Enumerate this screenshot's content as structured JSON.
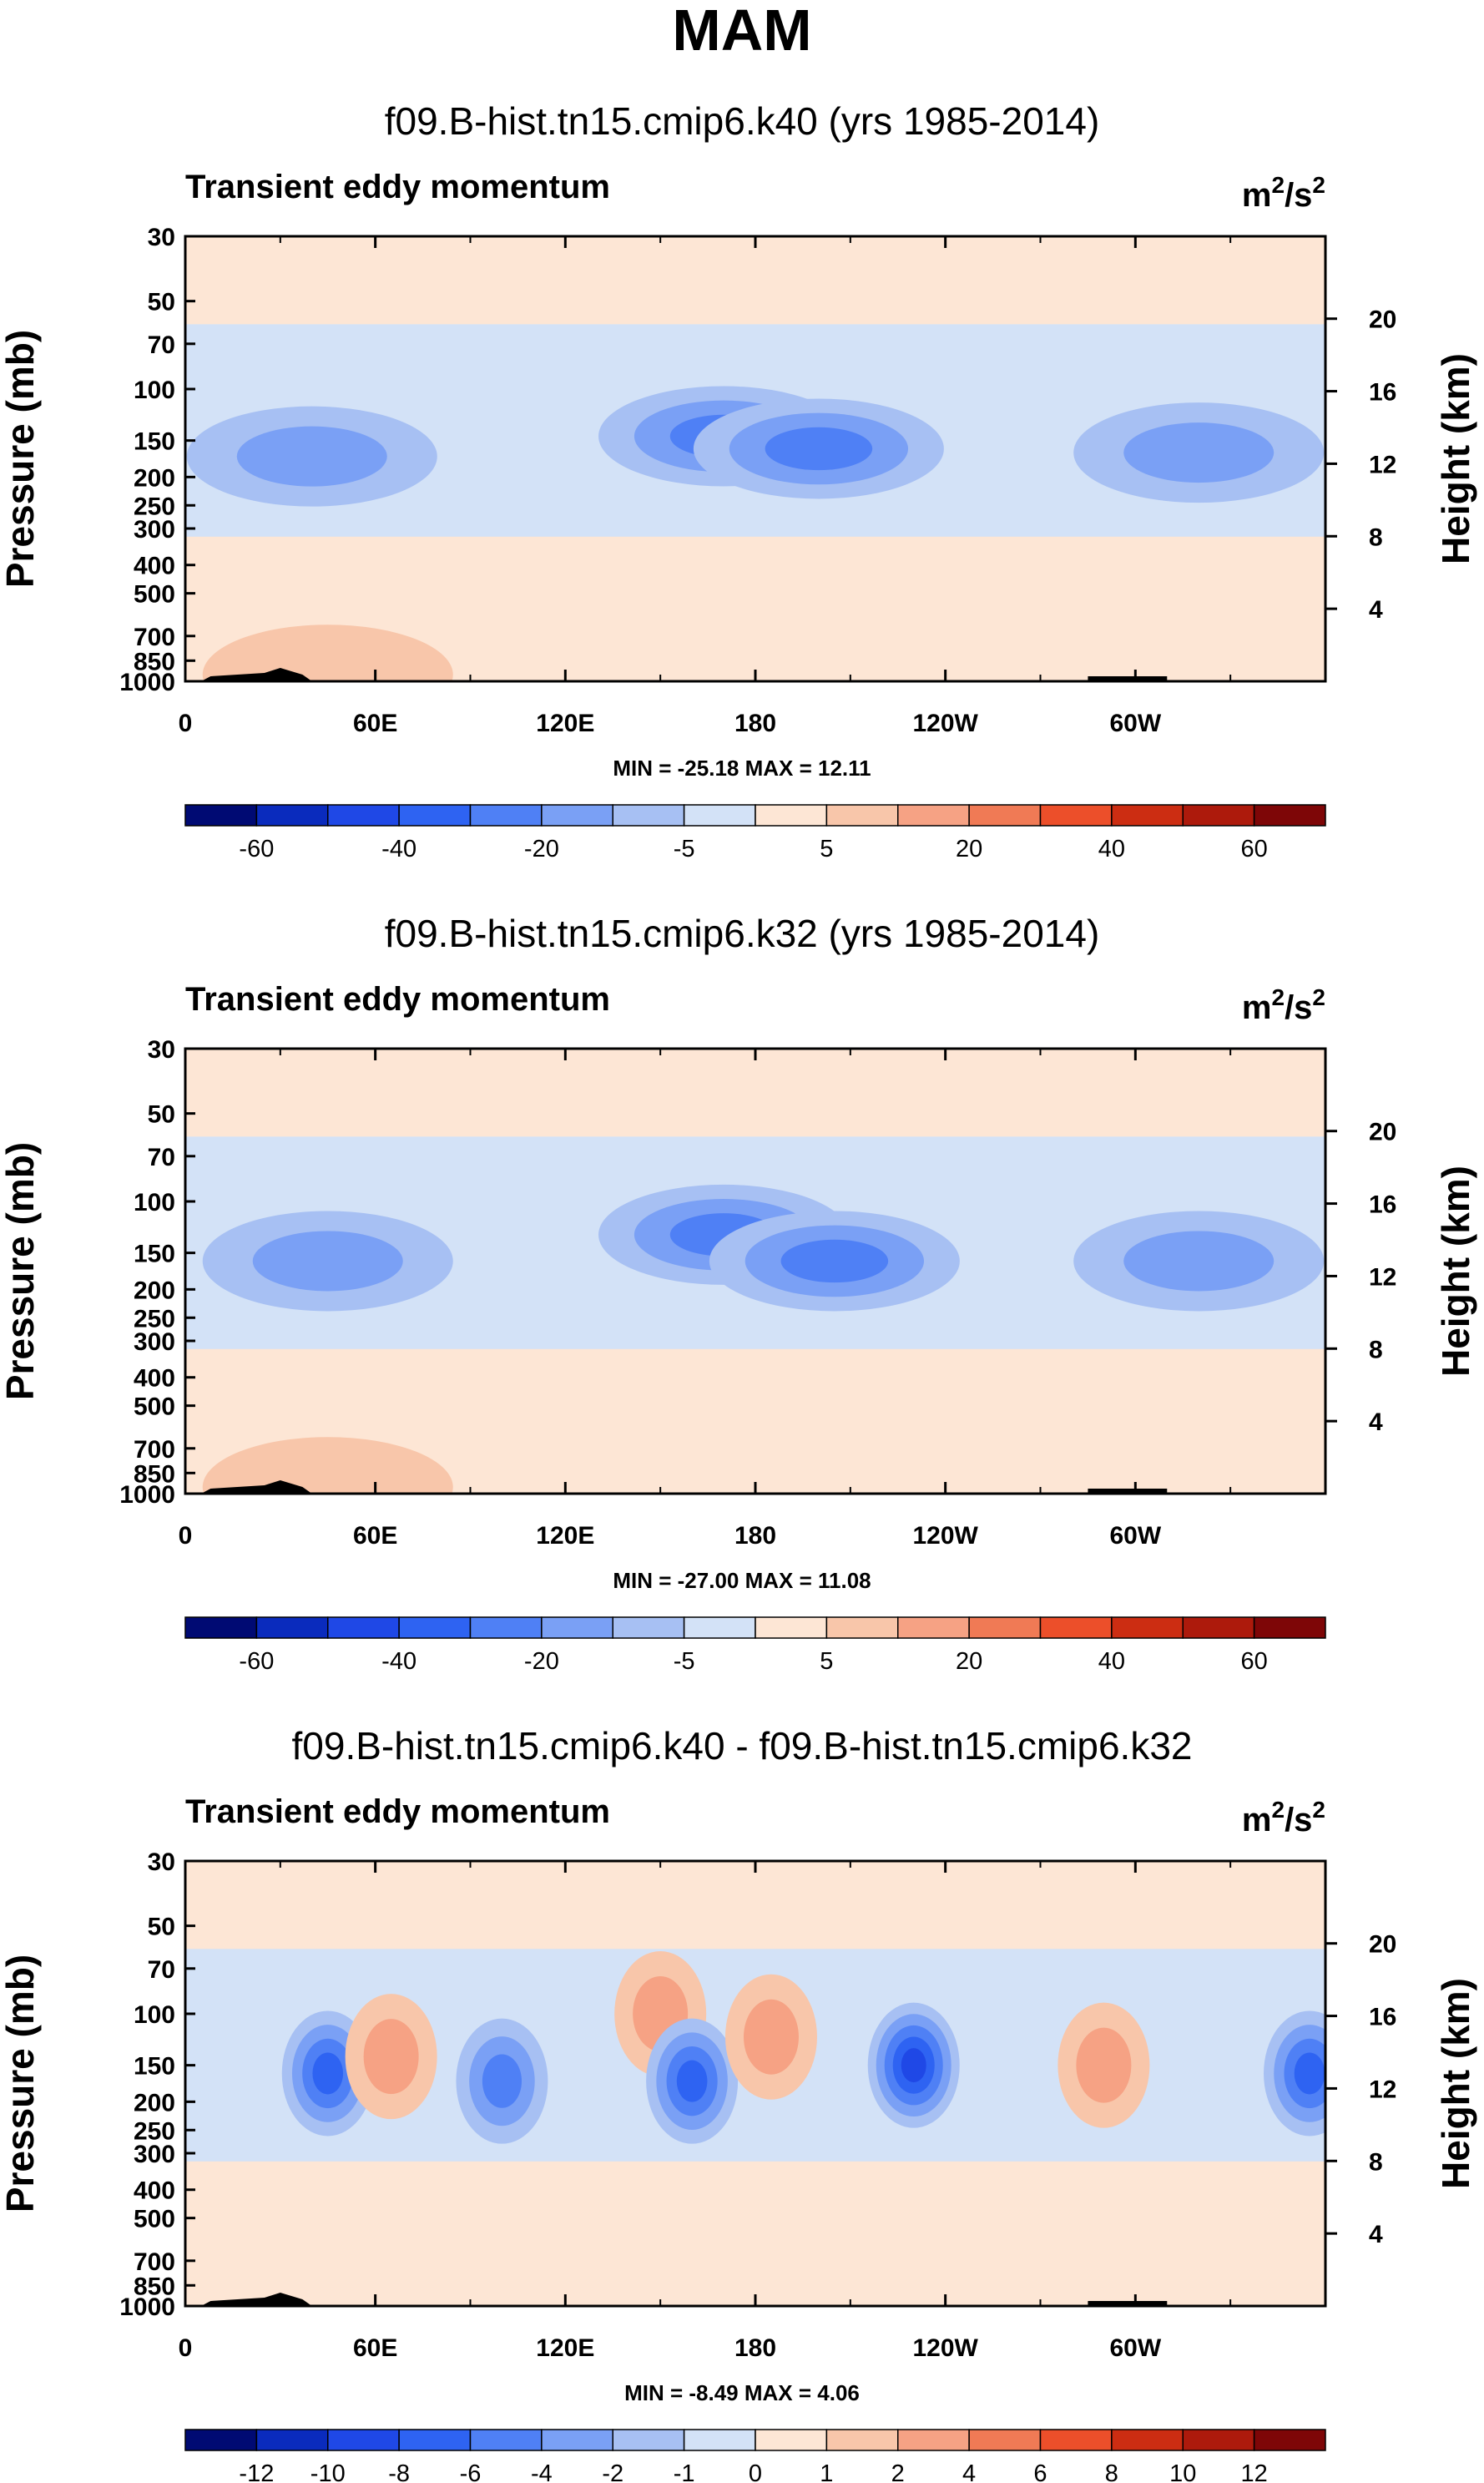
{
  "figure_title": "MAM",
  "colors": {
    "scale": [
      "#000a73",
      "#0a2bbd",
      "#1f48e6",
      "#2e63f2",
      "#4f80f5",
      "#7aa0f5",
      "#a7c0f3",
      "#d3e2f7",
      "#fde6d5",
      "#f8c6aa",
      "#f6a284",
      "#f07a55",
      "#ec4f2a",
      "#cc2d12",
      "#ad1a0c",
      "#7e0607"
    ],
    "land": "#000000"
  },
  "colorbar_labels": {
    "absolute": [
      "-60",
      "-40",
      "-20",
      "-5",
      "5",
      "20",
      "40",
      "60"
    ],
    "difference": [
      "-12",
      "-10",
      "-8",
      "-6",
      "-4",
      "-2",
      "-1",
      "0",
      "1",
      "2",
      "4",
      "6",
      "8",
      "10",
      "12"
    ]
  },
  "chart_data": [
    {
      "type": "heatmap",
      "title": "f09.B-hist.tn15.cmip6.k40 (yrs 1985-2014)",
      "subtitle": "Transient eddy momentum",
      "units_base": "m",
      "units_exp1": "2",
      "units_mid": "/s",
      "units_exp2": "2",
      "xlabel": "",
      "ylabel": "Pressure (mb)",
      "ylabel_right": "Height (km)",
      "x_ticks": [
        "0",
        "60E",
        "120E",
        "180",
        "120W",
        "60W"
      ],
      "y_ticks": [
        "30",
        "50",
        "70",
        "100",
        "150",
        "200",
        "250",
        "300",
        "400",
        "500",
        "700",
        "850",
        "1000"
      ],
      "y_ticks_right": [
        "20",
        "16",
        "12",
        "8",
        "4"
      ],
      "min_label": "MIN = -25.18",
      "max_label": "MAX =  12.11",
      "min": -25.18,
      "max": 12.11,
      "xlim_lon": [
        0,
        360
      ],
      "ylim_mb": [
        1000,
        30
      ],
      "contour_levels": [
        -70,
        -60,
        -50,
        -40,
        -30,
        -20,
        -10,
        -5,
        0,
        5,
        10,
        20,
        30,
        40,
        50,
        60,
        70
      ],
      "features": [
        {
          "lon": 40,
          "mb": 170,
          "value": -15
        },
        {
          "lon": 170,
          "mb": 145,
          "value": -20
        },
        {
          "lon": 200,
          "mb": 160,
          "value": -25
        },
        {
          "lon": 320,
          "mb": 165,
          "value": -14
        },
        {
          "lon": 45,
          "mb": 950,
          "value": 6
        }
      ]
    },
    {
      "type": "heatmap",
      "title": "f09.B-hist.tn15.cmip6.k32 (yrs 1985-2014)",
      "subtitle": "Transient eddy momentum",
      "units_base": "m",
      "units_exp1": "2",
      "units_mid": "/s",
      "units_exp2": "2",
      "xlabel": "",
      "ylabel": "Pressure (mb)",
      "ylabel_right": "Height (km)",
      "x_ticks": [
        "0",
        "60E",
        "120E",
        "180",
        "120W",
        "60W"
      ],
      "y_ticks": [
        "30",
        "50",
        "70",
        "100",
        "150",
        "200",
        "250",
        "300",
        "400",
        "500",
        "700",
        "850",
        "1000"
      ],
      "y_ticks_right": [
        "20",
        "16",
        "12",
        "8",
        "4"
      ],
      "min_label": "MIN = -27.00",
      "max_label": "MAX =  11.08",
      "min": -27.0,
      "max": 11.08,
      "xlim_lon": [
        0,
        360
      ],
      "ylim_mb": [
        1000,
        30
      ],
      "contour_levels": [
        -70,
        -60,
        -50,
        -40,
        -30,
        -20,
        -10,
        -5,
        0,
        5,
        10,
        20,
        30,
        40,
        50,
        60,
        70
      ],
      "features": [
        {
          "lon": 45,
          "mb": 160,
          "value": -14
        },
        {
          "lon": 170,
          "mb": 130,
          "value": -20
        },
        {
          "lon": 205,
          "mb": 160,
          "value": -27
        },
        {
          "lon": 320,
          "mb": 160,
          "value": -15
        },
        {
          "lon": 45,
          "mb": 950,
          "value": 6
        }
      ]
    },
    {
      "type": "heatmap",
      "title": "f09.B-hist.tn15.cmip6.k40 - f09.B-hist.tn15.cmip6.k32",
      "subtitle": "Transient eddy momentum",
      "units_base": "m",
      "units_exp1": "2",
      "units_mid": "/s",
      "units_exp2": "2",
      "xlabel": "",
      "ylabel": "Pressure (mb)",
      "ylabel_right": "Height (km)",
      "x_ticks": [
        "0",
        "60E",
        "120E",
        "180",
        "120W",
        "60W"
      ],
      "y_ticks": [
        "30",
        "50",
        "70",
        "100",
        "150",
        "200",
        "250",
        "300",
        "400",
        "500",
        "700",
        "850",
        "1000"
      ],
      "y_ticks_right": [
        "20",
        "16",
        "12",
        "8",
        "4"
      ],
      "min_label": "MIN = -8.49",
      "max_label": "MAX =  4.06",
      "min": -8.49,
      "max": 4.06,
      "xlim_lon": [
        0,
        360
      ],
      "ylim_mb": [
        1000,
        30
      ],
      "contour_levels": [
        -14,
        -12,
        -10,
        -8,
        -6,
        -4,
        -2,
        -1,
        0,
        1,
        2,
        4,
        6,
        8,
        10,
        12,
        14
      ],
      "features": [
        {
          "lon": 45,
          "mb": 160,
          "value": -7
        },
        {
          "lon": 65,
          "mb": 140,
          "value": 3
        },
        {
          "lon": 100,
          "mb": 170,
          "value": -4
        },
        {
          "lon": 150,
          "mb": 100,
          "value": 3
        },
        {
          "lon": 160,
          "mb": 170,
          "value": -6
        },
        {
          "lon": 185,
          "mb": 120,
          "value": 3
        },
        {
          "lon": 230,
          "mb": 150,
          "value": -8.49
        },
        {
          "lon": 290,
          "mb": 150,
          "value": 3
        },
        {
          "lon": 355,
          "mb": 160,
          "value": -6
        }
      ]
    }
  ]
}
